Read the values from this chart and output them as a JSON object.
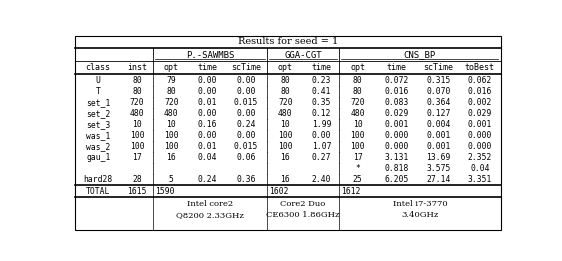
{
  "title": "Results for seed = 1",
  "header": [
    "class",
    "inst",
    "opt",
    "time",
    "scTime",
    "opt",
    "time",
    "opt",
    "time",
    "scTime",
    "toBest"
  ],
  "group_defs": [
    [
      0,
      1,
      ""
    ],
    [
      2,
      4,
      "P.-SAWMBS"
    ],
    [
      5,
      6,
      "GGA-CGT"
    ],
    [
      7,
      10,
      "CNS_BP"
    ]
  ],
  "rows": [
    [
      "U",
      "80",
      "79",
      "0.00",
      "0.00",
      "80",
      "0.23",
      "80",
      "0.072",
      "0.315",
      "0.062"
    ],
    [
      "T",
      "80",
      "80",
      "0.00",
      "0.00",
      "80",
      "0.41",
      "80",
      "0.016",
      "0.070",
      "0.016"
    ],
    [
      "set_1",
      "720",
      "720",
      "0.01",
      "0.015",
      "720",
      "0.35",
      "720",
      "0.083",
      "0.364",
      "0.002"
    ],
    [
      "set_2",
      "480",
      "480",
      "0.00",
      "0.00",
      "480",
      "0.12",
      "480",
      "0.029",
      "0.127",
      "0.029"
    ],
    [
      "set_3",
      "10",
      "10",
      "0.16",
      "0.24",
      "10",
      "1.99",
      "10",
      "0.001",
      "0.004",
      "0.001"
    ],
    [
      "was_1",
      "100",
      "100",
      "0.00",
      "0.00",
      "100",
      "0.00",
      "100",
      "0.000",
      "0.001",
      "0.000"
    ],
    [
      "was_2",
      "100",
      "100",
      "0.01",
      "0.015",
      "100",
      "1.07",
      "100",
      "0.000",
      "0.001",
      "0.000"
    ],
    [
      "gau_1",
      "17",
      "16",
      "0.04",
      "0.06",
      "16",
      "0.27",
      "17",
      "3.131",
      "13.69",
      "2.352"
    ],
    [
      "",
      "",
      "",
      "",
      "",
      "",
      "",
      "*",
      "0.818",
      "3.575",
      "0.04"
    ],
    [
      "hard28",
      "28",
      "5",
      "0.24",
      "0.36",
      "16",
      "2.40",
      "25",
      "6.205",
      "27.14",
      "3.351"
    ]
  ],
  "total_row": [
    "TOTAL",
    "1615",
    "1590",
    "1602",
    "1612"
  ],
  "footer_entries": [
    [
      2,
      4,
      "Intel core2\nQ8200 2.33GHz"
    ],
    [
      5,
      6,
      "Core2 Duo\nCE6300 1.86GHz"
    ],
    [
      7,
      10,
      "Intel i7-3770\n3.40GHz"
    ]
  ],
  "col_props": [
    0.09,
    0.063,
    0.073,
    0.07,
    0.082,
    0.073,
    0.07,
    0.073,
    0.082,
    0.082,
    0.082
  ],
  "background": "#ffffff"
}
